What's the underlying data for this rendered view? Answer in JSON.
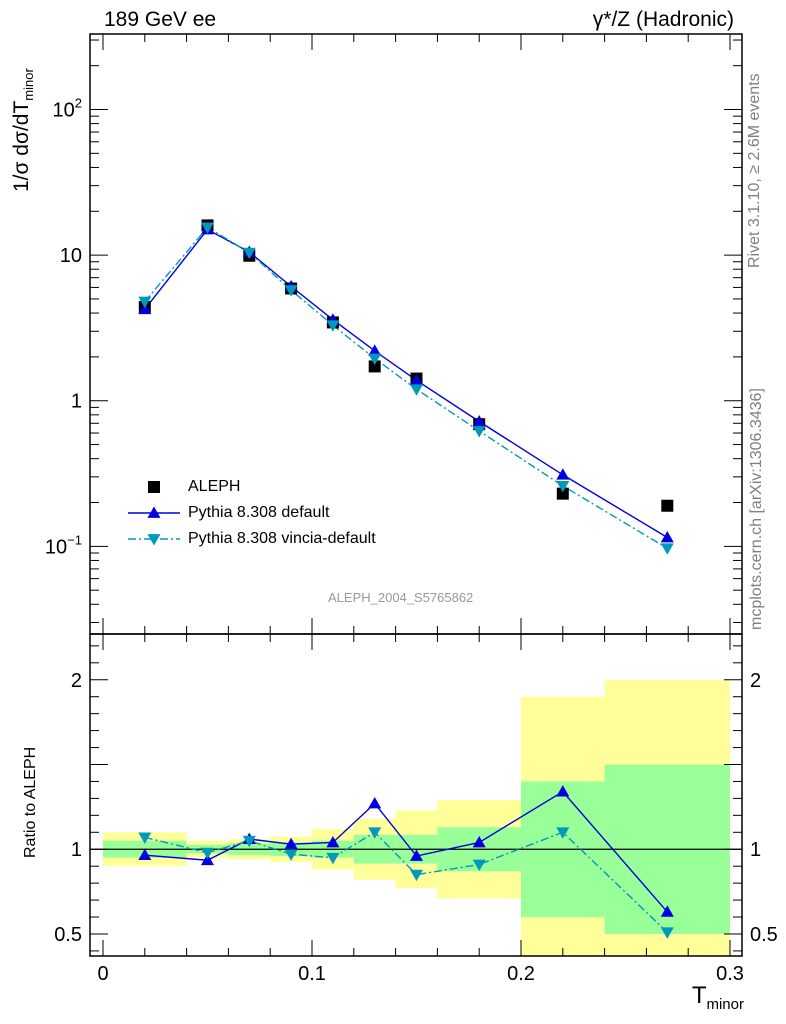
{
  "header": {
    "left": "189 GeV ee",
    "right": "γ*/Z (Hadronic)"
  },
  "side_texts": {
    "rivet": "Rivet 3.1.10, ≥ 2.6M events",
    "mcplots": "mcplots.cern.ch [arXiv:1306.3436]"
  },
  "analysis_label": "ALEPH_2004_S5765862",
  "colors": {
    "aleph": "#000000",
    "pythia_default": "#0000dd",
    "vincia": "#0099bb",
    "band_inner": "#99ff99",
    "band_outer": "#ffff99"
  },
  "chart_data": [
    {
      "type": "scatter",
      "title": "",
      "ylabel_main": "1/σ  dσ/dT",
      "ylabel_sub": "minor",
      "xlabel_main": "T",
      "xlabel_sub": "minor",
      "xlim": [
        0,
        0.3
      ],
      "ylim": [
        0.025,
        330
      ],
      "yscale": "log",
      "x_ticks": [
        0,
        0.1,
        0.2,
        0.3
      ],
      "y_tick_labels": [
        {
          "value": 0.1,
          "base": "10",
          "exp": "−1"
        },
        {
          "value": 1,
          "base": "1",
          "exp": ""
        },
        {
          "value": 10,
          "base": "10",
          "exp": ""
        },
        {
          "value": 100,
          "base": "10",
          "exp": "2"
        }
      ],
      "legend_position": "bottom-left",
      "series": [
        {
          "name": "ALEPH",
          "marker": "square",
          "x": [
            0.02,
            0.05,
            0.07,
            0.09,
            0.11,
            0.13,
            0.15,
            0.18,
            0.22,
            0.27
          ],
          "y": [
            4.4,
            16.0,
            9.9,
            5.9,
            3.45,
            1.72,
            1.42,
            0.69,
            0.23,
            0.19
          ]
        },
        {
          "name": "Pythia 8.308 default",
          "marker": "triangle-up",
          "line": "solid",
          "x": [
            0.02,
            0.05,
            0.07,
            0.09,
            0.11,
            0.13,
            0.15,
            0.18,
            0.22,
            0.27
          ],
          "y": [
            4.25,
            15.0,
            10.5,
            6.1,
            3.6,
            2.2,
            1.38,
            0.72,
            0.31,
            0.115
          ]
        },
        {
          "name": "Pythia 8.308 vincia-default",
          "marker": "triangle-down",
          "line": "dash-dot",
          "x": [
            0.02,
            0.05,
            0.07,
            0.09,
            0.11,
            0.13,
            0.15,
            0.18,
            0.22,
            0.27
          ],
          "y": [
            4.8,
            15.5,
            10.4,
            5.75,
            3.3,
            1.95,
            1.2,
            0.62,
            0.26,
            0.097
          ]
        }
      ]
    },
    {
      "type": "line",
      "title": "",
      "ylabel": "Ratio to ALEPH",
      "xlim": [
        0,
        0.3
      ],
      "ylim": [
        0.37,
        2.27
      ],
      "y_ticks": [
        0.5,
        1,
        2
      ],
      "reference_line": 1,
      "bands": {
        "bins": [
          [
            0,
            0.04
          ],
          [
            0.04,
            0.06
          ],
          [
            0.06,
            0.08
          ],
          [
            0.08,
            0.1
          ],
          [
            0.1,
            0.12
          ],
          [
            0.12,
            0.14
          ],
          [
            0.14,
            0.16
          ],
          [
            0.16,
            0.2
          ],
          [
            0.2,
            0.24
          ],
          [
            0.24,
            0.3
          ]
        ],
        "inner": [
          [
            0.95,
            1.05
          ],
          [
            0.975,
            1.025
          ],
          [
            0.965,
            1.035
          ],
          [
            0.96,
            1.04
          ],
          [
            0.95,
            1.05
          ],
          [
            0.915,
            1.085
          ],
          [
            0.915,
            1.085
          ],
          [
            0.87,
            1.13
          ],
          [
            0.6,
            1.4
          ],
          [
            0.5,
            1.5
          ]
        ],
        "outer": [
          [
            0.9,
            1.1
          ],
          [
            0.95,
            1.05
          ],
          [
            0.94,
            1.06
          ],
          [
            0.925,
            1.075
          ],
          [
            0.88,
            1.12
          ],
          [
            0.82,
            1.18
          ],
          [
            0.77,
            1.23
          ],
          [
            0.71,
            1.29
          ],
          [
            0.37,
            1.9
          ],
          [
            0.37,
            2.0
          ]
        ]
      },
      "series": [
        {
          "name": "Pythia 8.308 default",
          "marker": "triangle-up",
          "line": "solid",
          "x": [
            0.02,
            0.05,
            0.07,
            0.09,
            0.11,
            0.13,
            0.15,
            0.18,
            0.22,
            0.27
          ],
          "y": [
            0.965,
            0.935,
            1.06,
            1.03,
            1.04,
            1.27,
            0.96,
            1.04,
            1.34,
            0.63
          ]
        },
        {
          "name": "Pythia 8.308 vincia-default",
          "marker": "triangle-down",
          "line": "dash-dot",
          "x": [
            0.02,
            0.05,
            0.07,
            0.09,
            0.11,
            0.13,
            0.15,
            0.18,
            0.22,
            0.27
          ],
          "y": [
            1.07,
            0.98,
            1.05,
            0.97,
            0.95,
            1.1,
            0.85,
            0.91,
            1.1,
            0.51
          ]
        }
      ]
    }
  ]
}
